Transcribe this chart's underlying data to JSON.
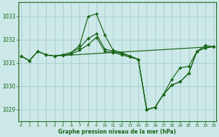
{
  "title": "Graphe pression niveau de la mer (hPa)",
  "bg_color": "#cce8e8",
  "grid_color": "#aacfcf",
  "line_color": "#1a6618",
  "ylim": [
    1028.5,
    1033.6
  ],
  "yticks": [
    1029,
    1030,
    1031,
    1032,
    1033
  ],
  "ytick_labels": [
    "1029",
    "1030",
    "1031",
    "1032",
    "1033"
  ],
  "xlim": [
    -0.3,
    23.3
  ],
  "xticks": [
    0,
    1,
    2,
    3,
    4,
    5,
    6,
    7,
    8,
    9,
    10,
    11,
    12,
    13,
    14,
    15,
    16,
    17,
    18,
    19,
    20,
    21,
    22,
    23
  ],
  "series": [
    {
      "x": [
        0,
        1,
        2,
        3,
        4,
        5,
        6,
        7,
        8,
        9,
        10,
        11,
        12,
        13,
        14,
        15,
        16,
        17,
        18,
        19,
        20,
        21,
        22,
        23
      ],
      "y": [
        1031.3,
        1031.1,
        1031.5,
        1031.35,
        1031.3,
        1031.35,
        1031.45,
        1031.75,
        1033.0,
        1033.1,
        1032.2,
        1031.55,
        1031.45,
        1031.3,
        1031.15,
        1029.0,
        1029.1,
        1029.65,
        1030.3,
        1030.8,
        1030.85,
        1031.5,
        1031.75,
        1031.7
      ]
    },
    {
      "x": [
        0,
        1,
        2,
        3,
        4,
        5,
        6,
        7,
        8,
        9,
        10,
        11,
        12,
        13,
        14,
        15,
        16,
        17,
        18,
        19,
        20,
        21,
        22,
        23
      ],
      "y": [
        1031.3,
        1031.1,
        1031.5,
        1031.35,
        1031.3,
        1031.35,
        1031.45,
        1031.65,
        1032.05,
        1032.25,
        1031.6,
        1031.5,
        1031.4,
        1031.3,
        1031.15,
        1029.0,
        1029.1,
        1029.65,
        1030.05,
        1030.2,
        1030.55,
        1031.5,
        1031.65,
        1031.7
      ]
    },
    {
      "x": [
        0,
        1,
        2,
        3,
        4,
        23
      ],
      "y": [
        1031.3,
        1031.1,
        1031.5,
        1031.35,
        1031.3,
        1031.7
      ]
    },
    {
      "x": [
        4,
        5,
        6,
        7,
        8,
        9,
        10,
        11,
        12,
        13,
        14,
        15,
        16,
        17,
        18,
        19,
        20,
        21,
        22,
        23
      ],
      "y": [
        1031.3,
        1031.32,
        1031.38,
        1031.55,
        1031.78,
        1032.1,
        1031.5,
        1031.45,
        1031.35,
        1031.25,
        1031.15,
        1029.0,
        1029.1,
        1029.65,
        1030.05,
        1030.2,
        1030.55,
        1031.5,
        1031.65,
        1031.7
      ]
    }
  ]
}
